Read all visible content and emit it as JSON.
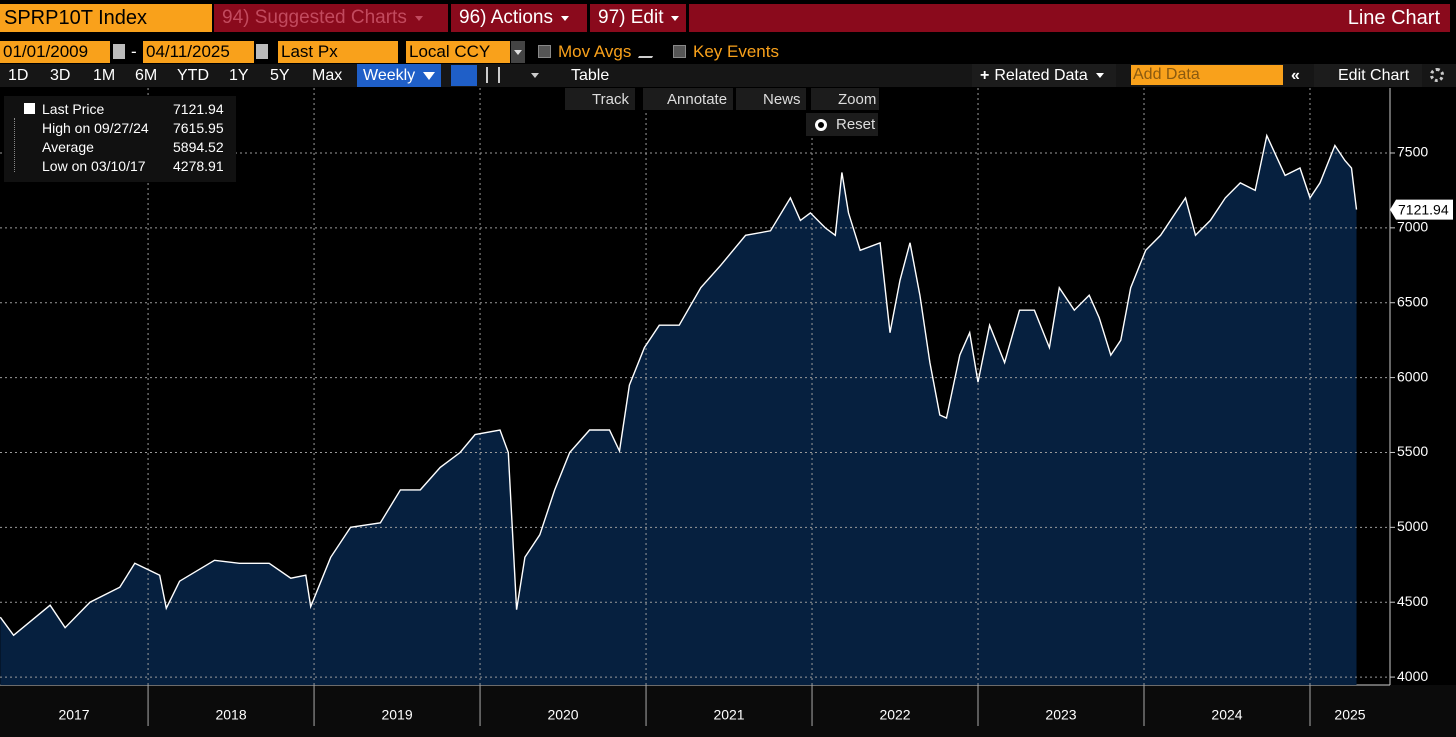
{
  "header": {
    "security": "SPRP10T Index",
    "menus": [
      "94) Suggested Charts",
      "96) Actions",
      "97) Edit"
    ],
    "chart_kind": "Line Chart"
  },
  "controls": {
    "start_date": "01/01/2009",
    "date_separator": "-",
    "end_date": "04/11/2025",
    "field": "Last Px",
    "currency": "Local CCY",
    "options": [
      "Mov Avgs",
      "Key Events"
    ]
  },
  "periods": [
    "1D",
    "3D",
    "1M",
    "6M",
    "YTD",
    "1Y",
    "5Y",
    "Max"
  ],
  "frequency": "Weekly",
  "view": "Table",
  "related": "Related Data",
  "add_data_placeholder": "Add Data",
  "edit": "Edit Chart",
  "chart_tools": [
    "Track",
    "Annotate",
    "News",
    "Zoom"
  ],
  "reset": "Reset",
  "chart_data": {
    "type": "line",
    "x": [
      2017.11,
      2017.19,
      2017.41,
      2017.5,
      2017.65,
      2017.83,
      2017.92,
      2018.07,
      2018.11,
      2018.19,
      2018.4,
      2018.55,
      2018.73,
      2018.86,
      2018.95,
      2018.98,
      2019.1,
      2019.22,
      2019.4,
      2019.52,
      2019.64,
      2019.76,
      2019.88,
      2019.97,
      2020.12,
      2020.17,
      2020.22,
      2020.27,
      2020.36,
      2020.45,
      2020.54,
      2020.66,
      2020.78,
      2020.84,
      2020.9,
      2020.99,
      2021.08,
      2021.2,
      2021.33,
      2021.45,
      2021.6,
      2021.75,
      2021.87,
      2021.93,
      2021.99,
      2022.08,
      2022.14,
      2022.18,
      2022.22,
      2022.29,
      2022.41,
      2022.47,
      2022.53,
      2022.59,
      2022.65,
      2022.71,
      2022.77,
      2022.81,
      2022.89,
      2022.95,
      2023.0,
      2023.07,
      2023.16,
      2023.25,
      2023.34,
      2023.43,
      2023.49,
      2023.58,
      2023.67,
      2023.73,
      2023.8,
      2023.86,
      2023.92,
      2024.01,
      2024.1,
      2024.19,
      2024.25,
      2024.31,
      2024.4,
      2024.49,
      2024.58,
      2024.67,
      2024.74,
      2024.85,
      2024.94,
      2025.0,
      2025.06,
      2025.15,
      2025.21,
      2025.25,
      2025.28
    ],
    "series": [
      {
        "name": "Last Price",
        "color": "#ffffff",
        "fill": "#06203f",
        "values": [
          4400,
          4278.91,
          4480,
          4330,
          4500,
          4600,
          4760,
          4680,
          4460,
          4640,
          4780,
          4760,
          4760,
          4660,
          4680,
          4470,
          4800,
          5000,
          5030,
          5250,
          5250,
          5400,
          5500,
          5620,
          5650,
          5500,
          4450,
          4800,
          4950,
          5250,
          5500,
          5650,
          5650,
          5510,
          5950,
          6200,
          6350,
          6350,
          6600,
          6750,
          6950,
          6980,
          7200,
          7050,
          7100,
          7000,
          6950,
          7370,
          7100,
          6850,
          6900,
          6300,
          6650,
          6900,
          6550,
          6100,
          5750,
          5730,
          6150,
          6300,
          5970,
          6350,
          6100,
          6450,
          6450,
          6200,
          6600,
          6450,
          6550,
          6400,
          6150,
          6250,
          6600,
          6850,
          6950,
          7100,
          7200,
          6950,
          7050,
          7200,
          7300,
          7250,
          7615.95,
          7350,
          7400,
          7200,
          7300,
          7550,
          7450,
          7400,
          7121.94
        ]
      }
    ],
    "xlim": [
      2017.108,
      2025.482
    ],
    "xticks": [
      2018,
      2019,
      2020,
      2021,
      2022,
      2023,
      2024,
      2025
    ],
    "year_labels": [
      "2017",
      "2018",
      "2019",
      "2020",
      "2021",
      "2022",
      "2023",
      "2024",
      "2025"
    ],
    "ylim": [
      3947,
      7934
    ],
    "yticks": [
      4000,
      4500,
      5000,
      5500,
      6000,
      6500,
      7000,
      7500
    ],
    "grid": true,
    "stats": [
      {
        "label": "High on 09/27/24",
        "value": 7615.95
      },
      {
        "label": "Average",
        "value": 5894.52
      },
      {
        "label": "Low on 03/10/17",
        "value": 4278.91
      }
    ]
  }
}
